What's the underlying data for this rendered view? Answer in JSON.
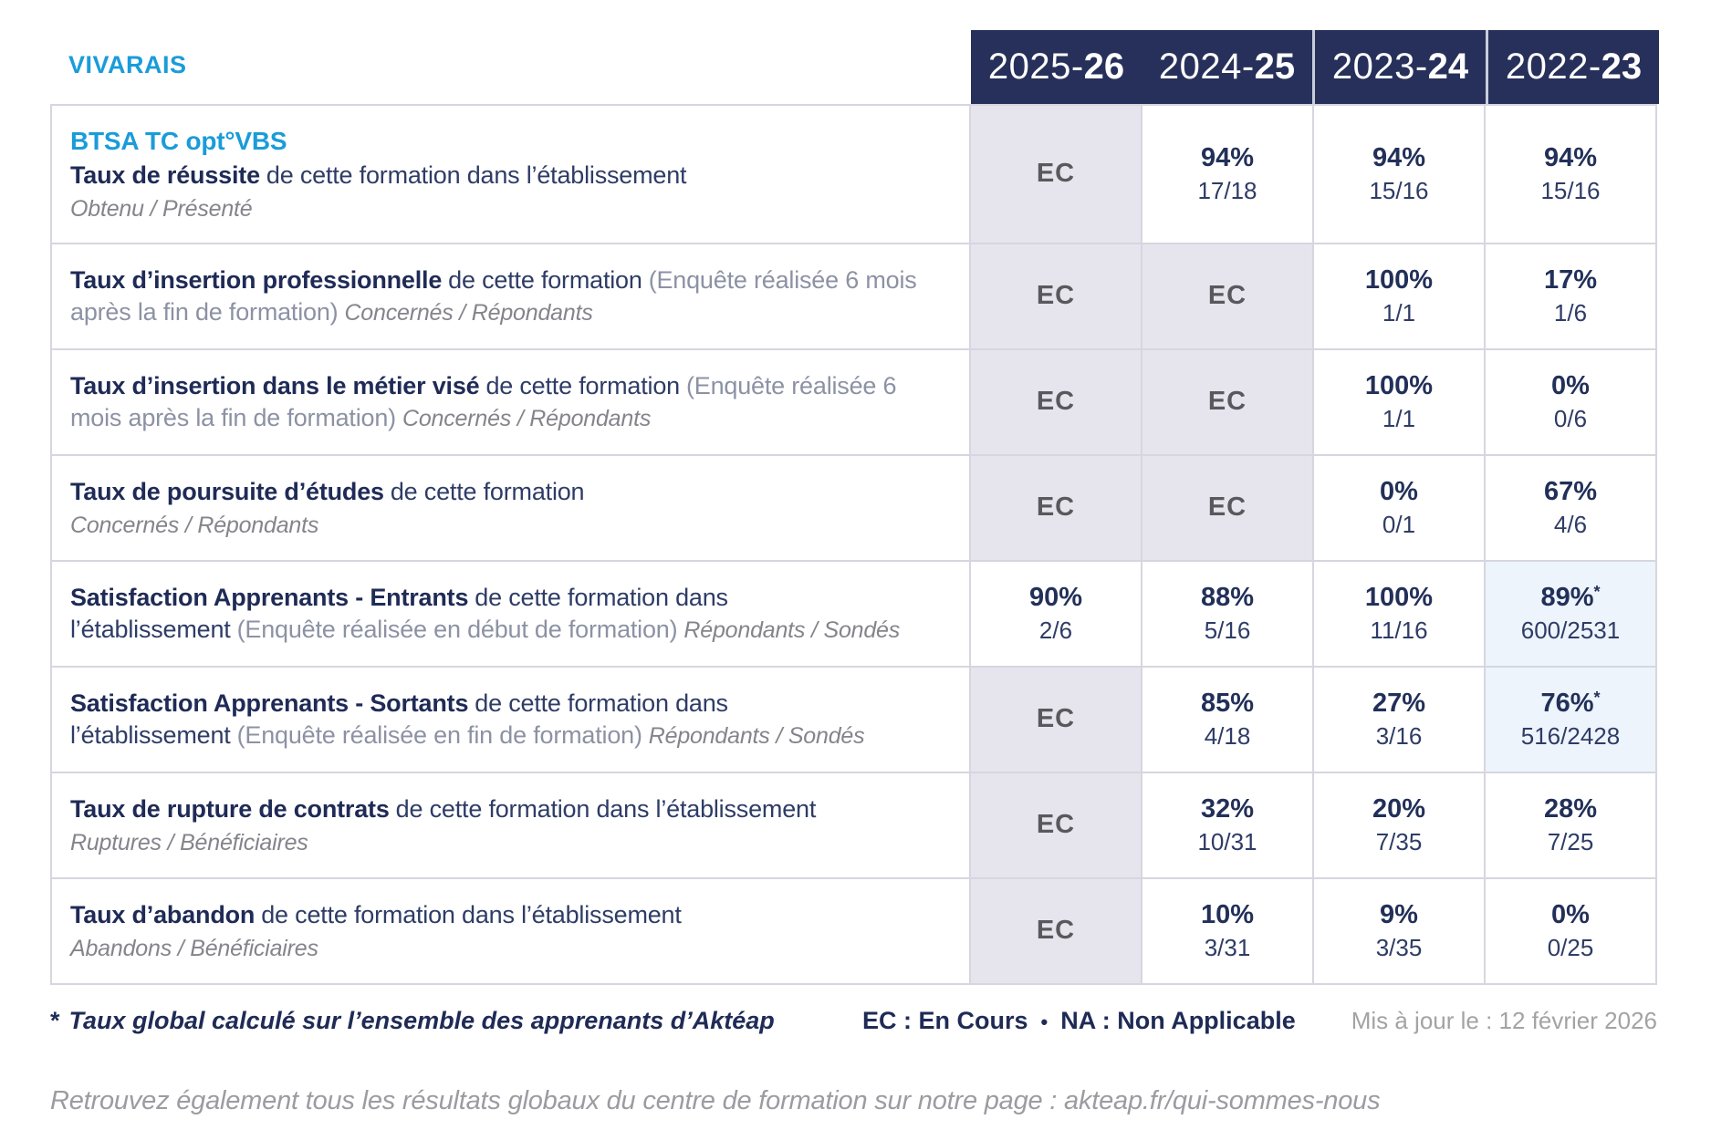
{
  "brand": "VIVARAIS",
  "columns": [
    {
      "prefix": "2025-",
      "suffix": "26"
    },
    {
      "prefix": "2024-",
      "suffix": "25"
    },
    {
      "prefix": "2023-",
      "suffix": "24"
    },
    {
      "prefix": "2022-",
      "suffix": "23"
    }
  ],
  "rows": [
    {
      "program": "BTSA TC opt°VBS",
      "title": "Taux de réussite",
      "desc": "de cette formation dans l’établissement",
      "sub": "Obtenu / Présenté",
      "cells": [
        {
          "kind": "ec",
          "text": "EC"
        },
        {
          "kind": "val",
          "pct": "94%",
          "frac": "17/18"
        },
        {
          "kind": "val",
          "pct": "94%",
          "frac": "15/16"
        },
        {
          "kind": "val",
          "pct": "94%",
          "frac": "15/16"
        }
      ]
    },
    {
      "title": "Taux d’insertion professionnelle",
      "desc": "de cette formation",
      "paren": "(Enquête réalisée 6 mois après la fin de formation)",
      "sub": "Concernés / Répondants",
      "cells": [
        {
          "kind": "ec",
          "text": "EC"
        },
        {
          "kind": "ec",
          "text": "EC"
        },
        {
          "kind": "val",
          "pct": "100%",
          "frac": "1/1"
        },
        {
          "kind": "val",
          "pct": "17%",
          "frac": "1/6"
        }
      ]
    },
    {
      "title": "Taux d’insertion dans le métier visé",
      "desc": "de cette formation",
      "paren": "(Enquête réalisée 6 mois après la fin de formation)",
      "sub": "Concernés / Répondants",
      "cells": [
        {
          "kind": "ec",
          "text": "EC"
        },
        {
          "kind": "ec",
          "text": "EC"
        },
        {
          "kind": "val",
          "pct": "100%",
          "frac": "1/1"
        },
        {
          "kind": "val",
          "pct": "0%",
          "frac": "0/6"
        }
      ]
    },
    {
      "title": "Taux de poursuite d’études",
      "desc": "de cette formation",
      "sub": "Concernés / Répondants",
      "cells": [
        {
          "kind": "ec",
          "text": "EC"
        },
        {
          "kind": "ec",
          "text": "EC"
        },
        {
          "kind": "val",
          "pct": "0%",
          "frac": "0/1"
        },
        {
          "kind": "val",
          "pct": "67%",
          "frac": "4/6"
        }
      ]
    },
    {
      "title": "Satisfaction Apprenants - Entrants",
      "desc": "de cette formation dans l’établissement",
      "paren": "(Enquête réalisée en début de formation)",
      "sub": "Répondants / Sondés",
      "cells": [
        {
          "kind": "val",
          "pct": "90%",
          "frac": "2/6"
        },
        {
          "kind": "val",
          "pct": "88%",
          "frac": "5/16"
        },
        {
          "kind": "val",
          "pct": "100%",
          "frac": "11/16"
        },
        {
          "kind": "val",
          "pct": "89%",
          "star": "*",
          "frac": "600/2531",
          "highlight": true
        }
      ]
    },
    {
      "title": "Satisfaction Apprenants - Sortants",
      "desc": "de cette formation dans l’établissement",
      "paren": "(Enquête réalisée en fin de formation)",
      "sub": "Répondants / Sondés",
      "cells": [
        {
          "kind": "ec",
          "text": "EC"
        },
        {
          "kind": "val",
          "pct": "85%",
          "frac": "4/18"
        },
        {
          "kind": "val",
          "pct": "27%",
          "frac": "3/16"
        },
        {
          "kind": "val",
          "pct": "76%",
          "star": "*",
          "frac": "516/2428",
          "highlight": true
        }
      ]
    },
    {
      "title": "Taux de rupture de contrats",
      "desc": "de cette formation dans l’établissement",
      "sub": "Ruptures / Bénéficiaires",
      "cells": [
        {
          "kind": "ec",
          "text": "EC"
        },
        {
          "kind": "val",
          "pct": "32%",
          "frac": "10/31"
        },
        {
          "kind": "val",
          "pct": "20%",
          "frac": "7/35"
        },
        {
          "kind": "val",
          "pct": "28%",
          "frac": "7/25"
        }
      ]
    },
    {
      "title": "Taux d’abandon",
      "desc": "de cette formation dans l’établissement",
      "sub": "Abandons / Bénéficiaires",
      "cells": [
        {
          "kind": "ec",
          "text": "EC"
        },
        {
          "kind": "val",
          "pct": "10%",
          "frac": "3/31"
        },
        {
          "kind": "val",
          "pct": "9%",
          "frac": "3/35"
        },
        {
          "kind": "val",
          "pct": "0%",
          "frac": "0/25"
        }
      ]
    }
  ],
  "footer": {
    "footnote_star": "*",
    "footnote_text": "Taux global calculé sur l’ensemble des apprenants d’Aktéap",
    "legend_ec": "EC : En Cours",
    "legend_bullet": "•",
    "legend_na": "NA : Non Applicable",
    "updated": "Mis à jour le : 12 février 2026",
    "bottom_note": "Retrouvez également tous les résultats globaux du centre de formation sur notre page : akteap.fr/qui-sommes-nous"
  },
  "colors": {
    "navy": "#27305a",
    "accent_blue": "#1a9cd9",
    "ec_background": "#e6e5ee",
    "highlight_background": "#edf4fb",
    "grid_line": "#d6d6e0"
  }
}
